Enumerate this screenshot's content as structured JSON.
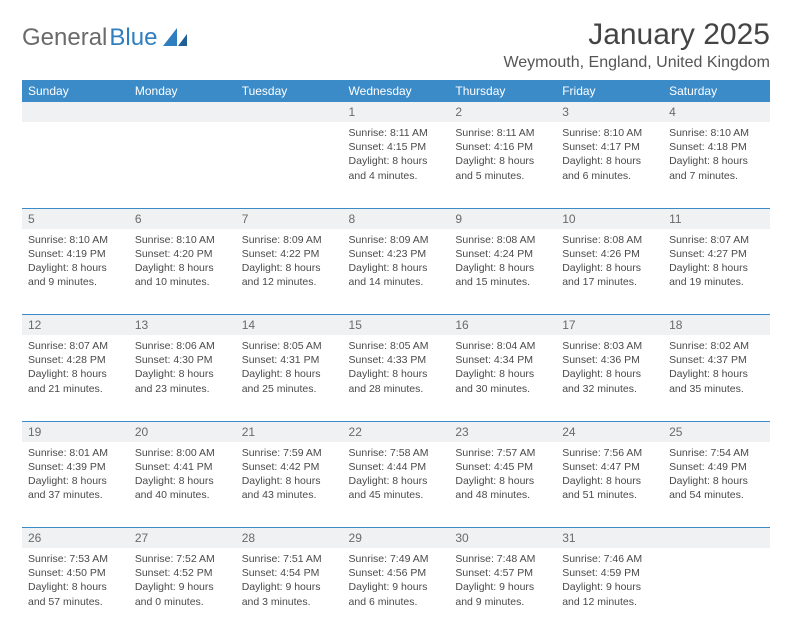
{
  "logo": {
    "text1": "General",
    "text2": "Blue"
  },
  "title": "January 2025",
  "location": "Weymouth, England, United Kingdom",
  "colors": {
    "header_bg": "#3b8bc9",
    "header_text": "#ffffff",
    "daynum_bg": "#eff1f2",
    "row_border": "#3b8bc9",
    "body_text": "#4a4a4a",
    "logo_gray": "#6a6a6a",
    "logo_blue": "#2f7fc0"
  },
  "weekdays": [
    "Sunday",
    "Monday",
    "Tuesday",
    "Wednesday",
    "Thursday",
    "Friday",
    "Saturday"
  ],
  "weeks": [
    {
      "nums": [
        "",
        "",
        "",
        "1",
        "2",
        "3",
        "4"
      ],
      "cells": [
        null,
        null,
        null,
        {
          "sunrise": "Sunrise: 8:11 AM",
          "sunset": "Sunset: 4:15 PM",
          "day1": "Daylight: 8 hours",
          "day2": "and 4 minutes."
        },
        {
          "sunrise": "Sunrise: 8:11 AM",
          "sunset": "Sunset: 4:16 PM",
          "day1": "Daylight: 8 hours",
          "day2": "and 5 minutes."
        },
        {
          "sunrise": "Sunrise: 8:10 AM",
          "sunset": "Sunset: 4:17 PM",
          "day1": "Daylight: 8 hours",
          "day2": "and 6 minutes."
        },
        {
          "sunrise": "Sunrise: 8:10 AM",
          "sunset": "Sunset: 4:18 PM",
          "day1": "Daylight: 8 hours",
          "day2": "and 7 minutes."
        }
      ]
    },
    {
      "nums": [
        "5",
        "6",
        "7",
        "8",
        "9",
        "10",
        "11"
      ],
      "cells": [
        {
          "sunrise": "Sunrise: 8:10 AM",
          "sunset": "Sunset: 4:19 PM",
          "day1": "Daylight: 8 hours",
          "day2": "and 9 minutes."
        },
        {
          "sunrise": "Sunrise: 8:10 AM",
          "sunset": "Sunset: 4:20 PM",
          "day1": "Daylight: 8 hours",
          "day2": "and 10 minutes."
        },
        {
          "sunrise": "Sunrise: 8:09 AM",
          "sunset": "Sunset: 4:22 PM",
          "day1": "Daylight: 8 hours",
          "day2": "and 12 minutes."
        },
        {
          "sunrise": "Sunrise: 8:09 AM",
          "sunset": "Sunset: 4:23 PM",
          "day1": "Daylight: 8 hours",
          "day2": "and 14 minutes."
        },
        {
          "sunrise": "Sunrise: 8:08 AM",
          "sunset": "Sunset: 4:24 PM",
          "day1": "Daylight: 8 hours",
          "day2": "and 15 minutes."
        },
        {
          "sunrise": "Sunrise: 8:08 AM",
          "sunset": "Sunset: 4:26 PM",
          "day1": "Daylight: 8 hours",
          "day2": "and 17 minutes."
        },
        {
          "sunrise": "Sunrise: 8:07 AM",
          "sunset": "Sunset: 4:27 PM",
          "day1": "Daylight: 8 hours",
          "day2": "and 19 minutes."
        }
      ]
    },
    {
      "nums": [
        "12",
        "13",
        "14",
        "15",
        "16",
        "17",
        "18"
      ],
      "cells": [
        {
          "sunrise": "Sunrise: 8:07 AM",
          "sunset": "Sunset: 4:28 PM",
          "day1": "Daylight: 8 hours",
          "day2": "and 21 minutes."
        },
        {
          "sunrise": "Sunrise: 8:06 AM",
          "sunset": "Sunset: 4:30 PM",
          "day1": "Daylight: 8 hours",
          "day2": "and 23 minutes."
        },
        {
          "sunrise": "Sunrise: 8:05 AM",
          "sunset": "Sunset: 4:31 PM",
          "day1": "Daylight: 8 hours",
          "day2": "and 25 minutes."
        },
        {
          "sunrise": "Sunrise: 8:05 AM",
          "sunset": "Sunset: 4:33 PM",
          "day1": "Daylight: 8 hours",
          "day2": "and 28 minutes."
        },
        {
          "sunrise": "Sunrise: 8:04 AM",
          "sunset": "Sunset: 4:34 PM",
          "day1": "Daylight: 8 hours",
          "day2": "and 30 minutes."
        },
        {
          "sunrise": "Sunrise: 8:03 AM",
          "sunset": "Sunset: 4:36 PM",
          "day1": "Daylight: 8 hours",
          "day2": "and 32 minutes."
        },
        {
          "sunrise": "Sunrise: 8:02 AM",
          "sunset": "Sunset: 4:37 PM",
          "day1": "Daylight: 8 hours",
          "day2": "and 35 minutes."
        }
      ]
    },
    {
      "nums": [
        "19",
        "20",
        "21",
        "22",
        "23",
        "24",
        "25"
      ],
      "cells": [
        {
          "sunrise": "Sunrise: 8:01 AM",
          "sunset": "Sunset: 4:39 PM",
          "day1": "Daylight: 8 hours",
          "day2": "and 37 minutes."
        },
        {
          "sunrise": "Sunrise: 8:00 AM",
          "sunset": "Sunset: 4:41 PM",
          "day1": "Daylight: 8 hours",
          "day2": "and 40 minutes."
        },
        {
          "sunrise": "Sunrise: 7:59 AM",
          "sunset": "Sunset: 4:42 PM",
          "day1": "Daylight: 8 hours",
          "day2": "and 43 minutes."
        },
        {
          "sunrise": "Sunrise: 7:58 AM",
          "sunset": "Sunset: 4:44 PM",
          "day1": "Daylight: 8 hours",
          "day2": "and 45 minutes."
        },
        {
          "sunrise": "Sunrise: 7:57 AM",
          "sunset": "Sunset: 4:45 PM",
          "day1": "Daylight: 8 hours",
          "day2": "and 48 minutes."
        },
        {
          "sunrise": "Sunrise: 7:56 AM",
          "sunset": "Sunset: 4:47 PM",
          "day1": "Daylight: 8 hours",
          "day2": "and 51 minutes."
        },
        {
          "sunrise": "Sunrise: 7:54 AM",
          "sunset": "Sunset: 4:49 PM",
          "day1": "Daylight: 8 hours",
          "day2": "and 54 minutes."
        }
      ]
    },
    {
      "nums": [
        "26",
        "27",
        "28",
        "29",
        "30",
        "31",
        ""
      ],
      "cells": [
        {
          "sunrise": "Sunrise: 7:53 AM",
          "sunset": "Sunset: 4:50 PM",
          "day1": "Daylight: 8 hours",
          "day2": "and 57 minutes."
        },
        {
          "sunrise": "Sunrise: 7:52 AM",
          "sunset": "Sunset: 4:52 PM",
          "day1": "Daylight: 9 hours",
          "day2": "and 0 minutes."
        },
        {
          "sunrise": "Sunrise: 7:51 AM",
          "sunset": "Sunset: 4:54 PM",
          "day1": "Daylight: 9 hours",
          "day2": "and 3 minutes."
        },
        {
          "sunrise": "Sunrise: 7:49 AM",
          "sunset": "Sunset: 4:56 PM",
          "day1": "Daylight: 9 hours",
          "day2": "and 6 minutes."
        },
        {
          "sunrise": "Sunrise: 7:48 AM",
          "sunset": "Sunset: 4:57 PM",
          "day1": "Daylight: 9 hours",
          "day2": "and 9 minutes."
        },
        {
          "sunrise": "Sunrise: 7:46 AM",
          "sunset": "Sunset: 4:59 PM",
          "day1": "Daylight: 9 hours",
          "day2": "and 12 minutes."
        },
        null
      ]
    }
  ]
}
